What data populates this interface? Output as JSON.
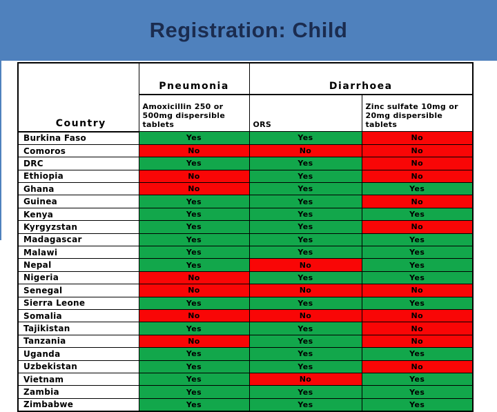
{
  "slide": {
    "title": "Registration: Child"
  },
  "colors": {
    "banner_blue": "#4f81bd",
    "title_text": "#1b2c4f",
    "yes_green": "#12a74b",
    "no_red": "#f90606"
  },
  "table": {
    "header": {
      "country": "Country",
      "pneumonia_group": "Pneumonia",
      "diarrhoea_group": "Diarrhoea",
      "amoxicillin_sub": "Amoxicillin 250 or 500mg dispersible tablets",
      "ors_sub": "ORS",
      "zinc_sub": "Zinc sulfate 10mg or 20mg dispersible tablets"
    },
    "value_keys": [
      "amoxicillin",
      "ors",
      "zinc"
    ],
    "rows": [
      {
        "country": "Burkina Faso",
        "amoxicillin": "Yes",
        "ors": "Yes",
        "zinc": "No"
      },
      {
        "country": "Comoros",
        "amoxicillin": "No",
        "ors": "No",
        "zinc": "No"
      },
      {
        "country": "DRC",
        "amoxicillin": "Yes",
        "ors": "Yes",
        "zinc": "No"
      },
      {
        "country": "Ethiopia",
        "amoxicillin": "No",
        "ors": "Yes",
        "zinc": "No"
      },
      {
        "country": "Ghana",
        "amoxicillin": "No",
        "ors": "Yes",
        "zinc": "Yes"
      },
      {
        "country": "Guinea",
        "amoxicillin": "Yes",
        "ors": "Yes",
        "zinc": "No"
      },
      {
        "country": "Kenya",
        "amoxicillin": "Yes",
        "ors": "Yes",
        "zinc": "Yes"
      },
      {
        "country": "Kyrgyzstan",
        "amoxicillin": "Yes",
        "ors": "Yes",
        "zinc": "No"
      },
      {
        "country": "Madagascar",
        "amoxicillin": "Yes",
        "ors": "Yes",
        "zinc": "Yes"
      },
      {
        "country": "Malawi",
        "amoxicillin": "Yes",
        "ors": "Yes",
        "zinc": "Yes"
      },
      {
        "country": "Nepal",
        "amoxicillin": "Yes",
        "ors": "No",
        "zinc": "Yes"
      },
      {
        "country": "Nigeria",
        "amoxicillin": "No",
        "ors": "Yes",
        "zinc": "Yes"
      },
      {
        "country": "Senegal",
        "amoxicillin": "No",
        "ors": "No",
        "zinc": "No"
      },
      {
        "country": "Sierra Leone",
        "amoxicillin": "Yes",
        "ors": "Yes",
        "zinc": "Yes"
      },
      {
        "country": "Somalia",
        "amoxicillin": "No",
        "ors": "No",
        "zinc": "No"
      },
      {
        "country": "Tajikistan",
        "amoxicillin": "Yes",
        "ors": "Yes",
        "zinc": "No"
      },
      {
        "country": "Tanzania",
        "amoxicillin": "No",
        "ors": "Yes",
        "zinc": "No"
      },
      {
        "country": "Uganda",
        "amoxicillin": "Yes",
        "ors": "Yes",
        "zinc": "Yes"
      },
      {
        "country": "Uzbekistan",
        "amoxicillin": "Yes",
        "ors": "Yes",
        "zinc": "No"
      },
      {
        "country": "Vietnam",
        "amoxicillin": "Yes",
        "ors": "No",
        "zinc": "Yes"
      },
      {
        "country": "Zambia",
        "amoxicillin": "Yes",
        "ors": "Yes",
        "zinc": "Yes"
      },
      {
        "country": "Zimbabwe",
        "amoxicillin": "Yes",
        "ors": "Yes",
        "zinc": "Yes"
      }
    ]
  }
}
